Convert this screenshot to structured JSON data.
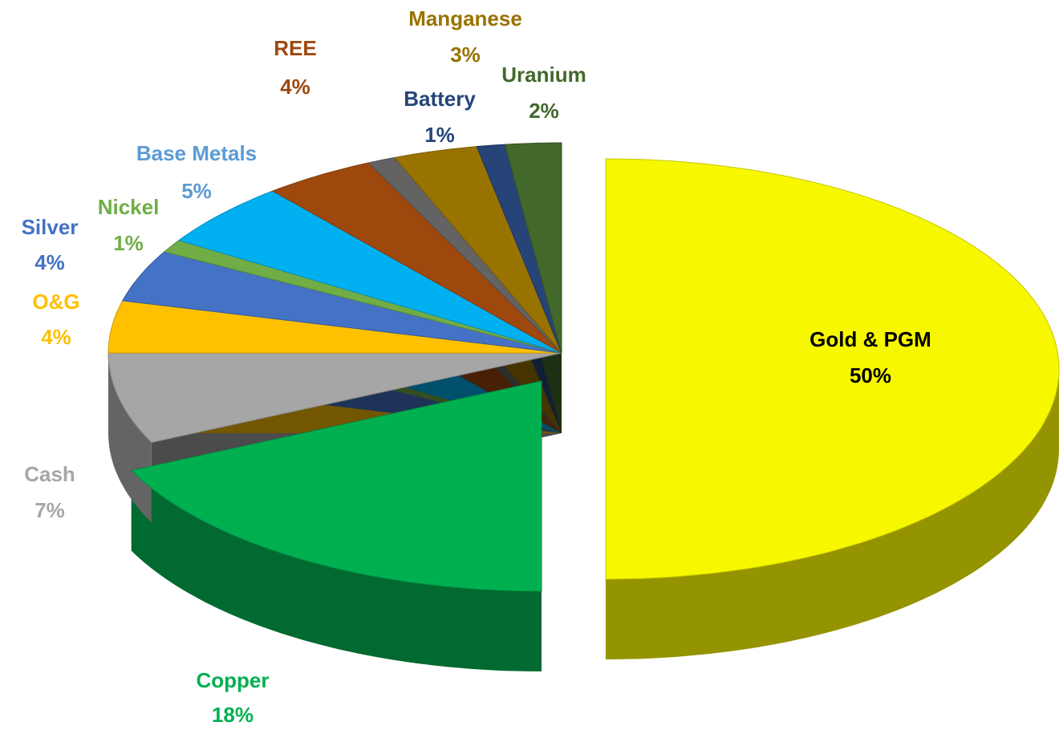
{
  "chart_data": {
    "type": "pie",
    "categories": [
      "Gold & PGM",
      "Copper",
      "Cash",
      "O&G",
      "Silver",
      "Nickel",
      "Base Metals",
      "REE",
      null,
      "Manganese",
      "Battery",
      "Uranium"
    ],
    "values": [
      50,
      18,
      7,
      4,
      4,
      1,
      5,
      4,
      1,
      3,
      1,
      2
    ],
    "value_labels": [
      "50%",
      "18%",
      "7%",
      "4%",
      "4%",
      "1%",
      "5%",
      "4%",
      null,
      "3%",
      "1%",
      "2%"
    ],
    "colors": [
      "#f7f700",
      "#00b050",
      "#a6a6a6",
      "#ffc000",
      "#4472c4",
      "#70ad47",
      "#00b0f0",
      "#9e480e",
      "#636363",
      "#997300",
      "#264478",
      "#43682b"
    ],
    "label_colors": [
      "#000000",
      "#00b050",
      "#a6a6a6",
      "#ffc000",
      "#4472c4",
      "#70ad47",
      "#5b9bd5",
      "#9e480e",
      null,
      "#997300",
      "#264478",
      "#43682b"
    ]
  }
}
